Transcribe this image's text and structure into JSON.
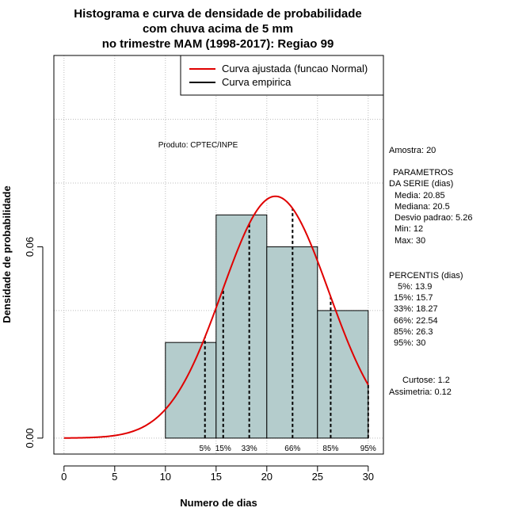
{
  "chart_data": {
    "type": "bar",
    "title_lines": [
      "Histograma e curva de densidade de probabilidade",
      "com chuva acima de 5 mm",
      "no trimestre MAM (1998-2017): Regiao 99"
    ],
    "xlabel": "Numero de dias",
    "ylabel": "Densidade de probabilidade",
    "xlim": [
      -1,
      31.5
    ],
    "ylim": [
      -0.005,
      0.12
    ],
    "x_ticks": [
      0,
      5,
      10,
      15,
      20,
      25,
      30
    ],
    "y_ticks": [
      0.0,
      0.06
    ],
    "y_tick_labels": [
      "0.00",
      "0.06"
    ],
    "grid": true,
    "bins": [
      {
        "start": 10,
        "end": 15,
        "density": 0.03
      },
      {
        "start": 15,
        "end": 20,
        "density": 0.07
      },
      {
        "start": 20,
        "end": 25,
        "density": 0.06
      },
      {
        "start": 25,
        "end": 30,
        "density": 0.04
      }
    ],
    "bar_color": "#b4cccc",
    "normal_curve": {
      "mean": 20.85,
      "sd": 5.26,
      "color": "#e00000",
      "x_range": [
        0,
        30
      ]
    },
    "percentile_lines": [
      {
        "label": "5%",
        "x": 13.9
      },
      {
        "label": "15%",
        "x": 15.7
      },
      {
        "label": "33%",
        "x": 18.27
      },
      {
        "label": "66%",
        "x": 22.54
      },
      {
        "label": "85%",
        "x": 26.3
      },
      {
        "label": "95%",
        "x": 30
      }
    ],
    "legend": {
      "position": "top-right",
      "entries": [
        {
          "label": "Curva ajustada (funcao Normal)",
          "color": "#e00000"
        },
        {
          "label": "Curva empirica",
          "color": "#000000"
        }
      ]
    },
    "annotation": "Produto: CPTEC/INPE"
  },
  "stats": {
    "amostra": "Amostra: 20",
    "param_title_1": "PARAMETROS",
    "param_title_2": "DA SERIE (dias)",
    "media": "Media: 20.85",
    "mediana": "Mediana: 20.5",
    "desvio": "Desvio padrao: 5.26",
    "min": "Min: 12",
    "max": "Max: 30",
    "percentis_title": "PERCENTIS (dias)",
    "p5": "5%: 13.9",
    "p15": "15%: 15.7",
    "p33": "33%: 18.27",
    "p66": "66%: 22.54",
    "p85": "85%: 26.3",
    "p95": "95%: 30",
    "curtose": "Curtose: 1.2",
    "assimetria": "Assimetria: 0.12"
  }
}
